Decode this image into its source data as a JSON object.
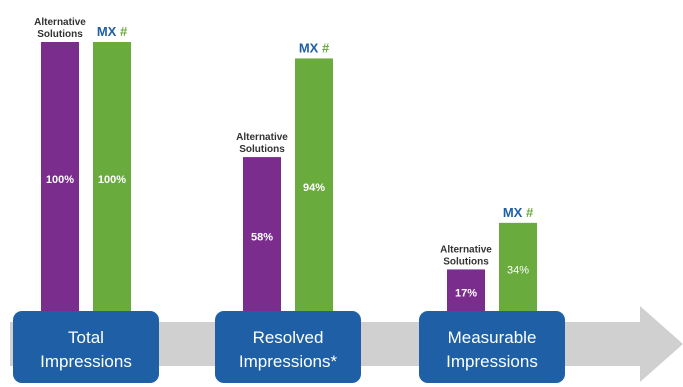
{
  "chart_data": {
    "type": "bar",
    "categories": [
      "Total Impressions",
      "Resolved Impressions*",
      "Measurable Impressions"
    ],
    "category_lines": [
      [
        "Total",
        "Impressions"
      ],
      [
        "Resolved",
        "Impressions*"
      ],
      [
        "Measurable",
        "Impressions"
      ]
    ],
    "series": [
      {
        "name": "Alternative Solutions",
        "name_lines": [
          "Alternative",
          "Solutions"
        ],
        "color": "#7b2d8e",
        "values": [
          100,
          58,
          17
        ]
      },
      {
        "name": "MX #",
        "name_parts": [
          "MX",
          "#"
        ],
        "color": "#6aab3e",
        "values": [
          100,
          94,
          34
        ]
      }
    ],
    "value_labels": [
      [
        "100%",
        "58%",
        "17%"
      ],
      [
        "100%",
        "94%",
        "34%"
      ]
    ],
    "bold_value_labels": [
      [
        true,
        true,
        true
      ],
      [
        true,
        true,
        false
      ]
    ],
    "ylim": [
      0,
      100
    ],
    "arrow_color": "#d0d0d0",
    "category_box_color": "#1f5fa5",
    "brand_colors": {
      "mx": "#1f5fa5",
      "hash": "#6aab3e"
    }
  }
}
